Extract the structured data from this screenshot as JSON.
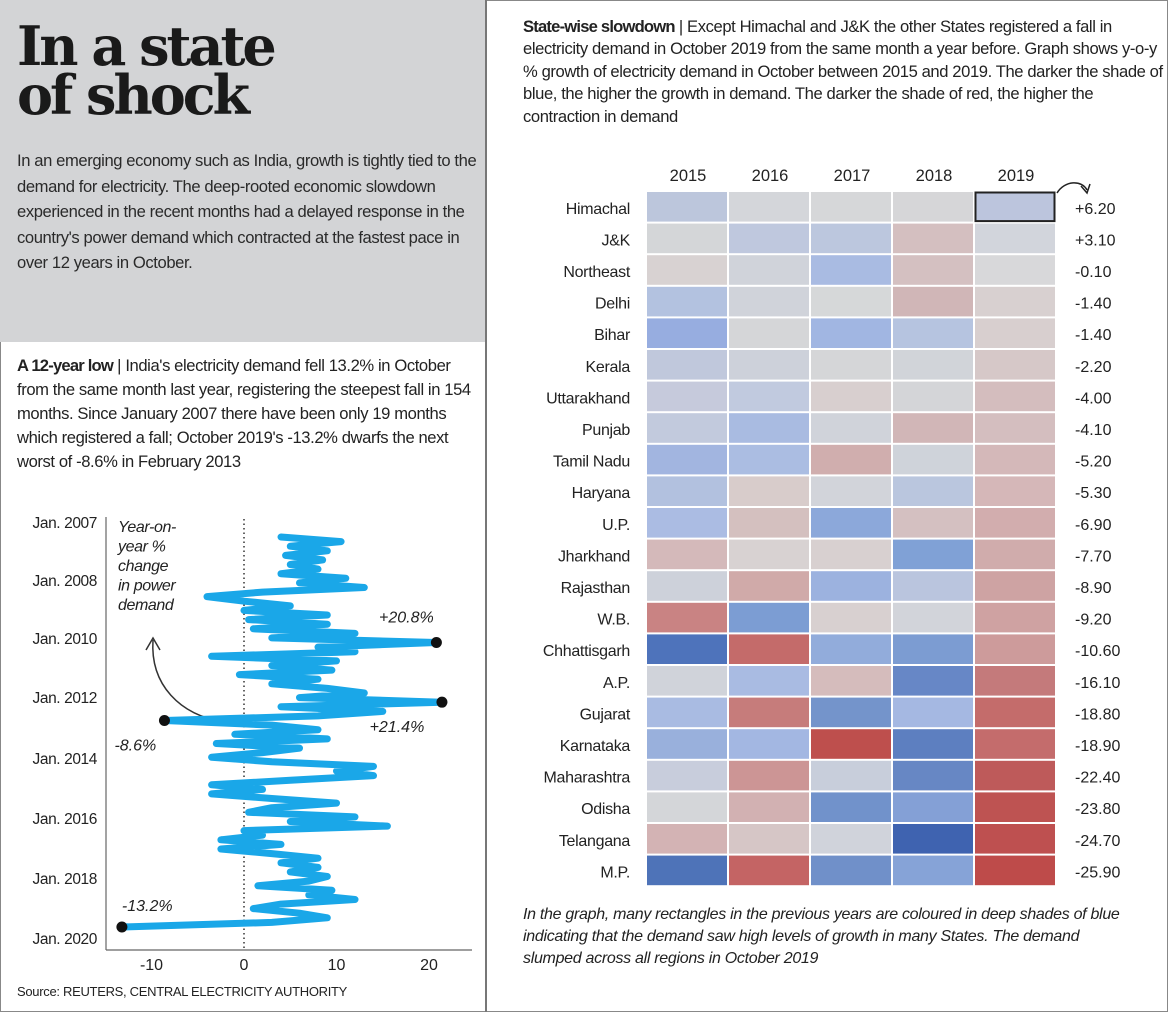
{
  "header": {
    "title_line1": "In a state",
    "title_line2": "of shock",
    "intro": "In an emerging economy such as India, growth is tightly tied to the demand for electricity. The deep-rooted economic slowdown experienced in the recent months had a delayed response in the country's power demand which contracted at the fastest pace in over 12 years in October."
  },
  "low_section": {
    "heading": "A 12-year low",
    "separator": " | ",
    "text": "India's electricity demand fell 13.2% in October from the same month last year, registering the steepest fall in 154 months. Since January 2007 there have been only 19 months which registered a fall; October 2019's -13.2% dwarfs the next worst of -8.6% in February 2013"
  },
  "statewise_section": {
    "heading": "State-wise slowdown",
    "separator": " | ",
    "text": "Except Himachal and J&K the other States registered a fall in electricity demand in October 2019 from the same month a year before. Graph shows y-o-y % growth of electricity demand in October between 2015 and 2019. The darker the shade of blue, the higher the growth in demand. The darker the shade of red, the higher the contraction in demand"
  },
  "source": "Source: REUTERS, CENTRAL ELECTRICITY AUTHORITY",
  "note": "In the graph, many rectangles in the previous years are coloured in deep shades of blue indicating that the demand saw high levels of growth in many States. The demand slumped across all regions in October 2019",
  "chart_data": [
    {
      "type": "line",
      "orientation": "vertical-time",
      "annotation": "Year-on-year % change in power demand",
      "annotation_lines": [
        "Year-on-",
        "year %",
        "change",
        "in power",
        "demand"
      ],
      "time_range": [
        "Jan. 2007",
        "Oct. 2019"
      ],
      "y_tick_labels": [
        "Jan. 2007",
        "Jan. 2008",
        "Jan. 2010",
        "Jan. 2012",
        "Jan. 2014",
        "Jan. 2016",
        "Jan. 2018",
        "Jan. 2020"
      ],
      "x_tick_labels": [
        "-10",
        "0",
        "10",
        "20"
      ],
      "x_ticks": [
        -10,
        0,
        10,
        20
      ],
      "xlim": [
        -15,
        25
      ],
      "zero_line": "dotted",
      "line_color": "#1aa7e8",
      "values": [
        4,
        10.5,
        5,
        9,
        4.5,
        8.5,
        5,
        8,
        4,
        11,
        6,
        13,
        2,
        -4,
        0,
        5,
        0,
        9,
        0.5,
        9,
        1,
        12,
        3,
        20.8,
        8,
        12,
        -3.5,
        10,
        3,
        9.5,
        -0.5,
        8,
        3,
        9,
        13,
        6,
        21.4,
        4,
        15,
        8,
        -8.6,
        3,
        8,
        -1,
        9,
        -3,
        6,
        2,
        -3.5,
        3,
        14,
        10,
        14,
        5,
        -3.5,
        2,
        -3.5,
        3,
        10,
        3,
        0.5,
        12,
        5,
        15.5,
        0,
        2,
        -2.5,
        4,
        -2.5,
        3,
        8,
        4,
        8,
        5,
        9,
        7,
        1.5,
        9.5,
        7,
        12,
        4,
        1,
        6,
        9,
        3,
        -13.2
      ],
      "labeled_points": [
        {
          "label": "+20.8%",
          "value": 20.8
        },
        {
          "label": "+21.4%",
          "value": 21.4
        },
        {
          "label": "-8.6%",
          "value": -8.6
        },
        {
          "label": "-13.2%",
          "value": -13.2
        }
      ]
    },
    {
      "type": "heatmap",
      "columns": [
        "2015",
        "2016",
        "2017",
        "2018",
        "2019"
      ],
      "rows": [
        "Himachal",
        "J&K",
        "Northeast",
        "Delhi",
        "Bihar",
        "Kerala",
        "Uttarakhand",
        "Punjab",
        "Tamil Nadu",
        "Haryana",
        "U.P.",
        "Jharkhand",
        "Rajasthan",
        "W.B.",
        "Chhattisgarh",
        "A.P.",
        "Gujarat",
        "Karnataka",
        "Maharashtra",
        "Odisha",
        "Telangana",
        "M.P."
      ],
      "values_2019_labels": [
        "+6.20",
        "+3.10",
        "-0.10",
        "-1.40",
        "-1.40",
        "-2.20",
        "-4.00",
        "-4.10",
        "-5.20",
        "-5.30",
        "-6.90",
        "-7.70",
        "-8.90",
        "-9.20",
        "-10.60",
        "-16.10",
        "-18.80",
        "-18.90",
        "-22.40",
        "-23.80",
        "-24.70",
        "-25.90"
      ],
      "values_2019": [
        6.2,
        3.1,
        -0.1,
        -1.4,
        -1.4,
        -2.2,
        -4.0,
        -4.1,
        -5.2,
        -5.3,
        -6.9,
        -7.7,
        -8.9,
        -9.2,
        -10.6,
        -16.1,
        -18.8,
        -18.9,
        -22.4,
        -23.8,
        -24.7,
        -25.9
      ],
      "color_scale": "blue = growth, red = contraction",
      "highlighted_cell": {
        "row": "Himachal",
        "column": "2019"
      },
      "cell_colors": [
        [
          "#bcc6dc",
          "#d4d6da",
          "#d6d7d9",
          "#d6d6d8",
          "#bcc5dd"
        ],
        [
          "#d4d6d8",
          "#bfc8de",
          "#bcc7de",
          "#d4bfc0",
          "#d2d5dc"
        ],
        [
          "#d8d2d2",
          "#d0d3da",
          "#a9bbe2",
          "#d4c0c1",
          "#d8d8da"
        ],
        [
          "#b3c2e0",
          "#d0d3da",
          "#d6d8d9",
          "#d0b6b7",
          "#d8d0d0"
        ],
        [
          "#97ade0",
          "#d5d6d8",
          "#a1b6e2",
          "#b6c4e0",
          "#d8cfcf"
        ],
        [
          "#c0c8dc",
          "#cdd1da",
          "#d5d6d8",
          "#d1d4d9",
          "#d6c8c8"
        ],
        [
          "#c6cadc",
          "#c1cadf",
          "#d8cfcf",
          "#d4d5d8",
          "#d4bdbe"
        ],
        [
          "#c2cadd",
          "#a9bbe1",
          "#d0d3da",
          "#d1b6b7",
          "#d4bebf"
        ],
        [
          "#a2b5e0",
          "#abbde2",
          "#d0aeae",
          "#cfd3da",
          "#d4b8b9"
        ],
        [
          "#b2c1df",
          "#d8cccb",
          "#d2d4da",
          "#bac6de",
          "#d5b7b8"
        ],
        [
          "#abbce3",
          "#d4c0bf",
          "#8ca8da",
          "#d4c0c1",
          "#d2adae"
        ],
        [
          "#d4b9ba",
          "#d8d2d2",
          "#d8d0d0",
          "#80a1d6",
          "#d0acac"
        ],
        [
          "#cdd1da",
          "#d0aaa9",
          "#9cb2df",
          "#bac5de",
          "#cea3a3"
        ],
        [
          "#c98383",
          "#7c9dd3",
          "#d8d0d0",
          "#d2d4da",
          "#cfa2a2"
        ],
        [
          "#4e73bb",
          "#c46b6a",
          "#92acdb",
          "#7c9cd2",
          "#cd9b9b"
        ],
        [
          "#d0d3da",
          "#a9bbe2",
          "#d5bcbc",
          "#6787c6",
          "#c47a7b"
        ],
        [
          "#a9bbe2",
          "#c67c7b",
          "#7494cb",
          "#a5b8e2",
          "#c46c6b"
        ],
        [
          "#99b0dc",
          "#a3b7e2",
          "#be4f4d",
          "#5d7fc0",
          "#c46c6c"
        ],
        [
          "#c8cddc",
          "#cc9595",
          "#c8cedb",
          "#6787c4",
          "#be5a5a"
        ],
        [
          "#d4d6d9",
          "#d2b1b2",
          "#7192cb",
          "#84a0d6",
          "#be5352"
        ],
        [
          "#d3b3b4",
          "#d6c6c6",
          "#d0d3db",
          "#3f63b0",
          "#be5050"
        ],
        [
          "#4e73b8",
          "#c46464",
          "#7090c9",
          "#86a3d7",
          "#be4b4a"
        ]
      ]
    }
  ]
}
